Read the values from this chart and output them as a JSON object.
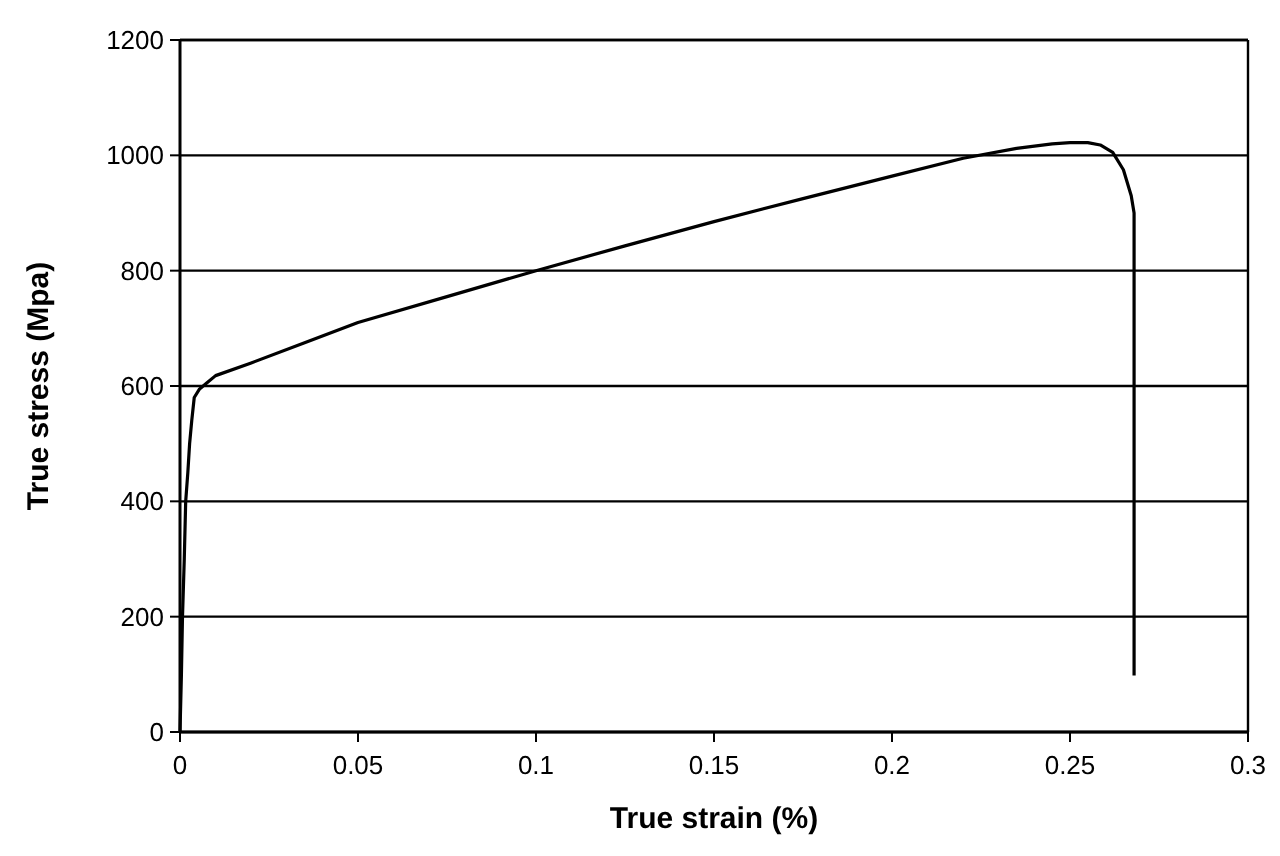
{
  "chart_data": {
    "type": "line",
    "xlabel": "True strain (%)",
    "ylabel": "True stress (Mpa)",
    "x": [
      0,
      0.0004,
      0.0007,
      0.0012,
      0.0016,
      0.0022,
      0.0027,
      0.0033,
      0.004,
      0.0055,
      0.0075,
      0.01,
      0.02,
      0.035,
      0.05,
      0.075,
      0.1,
      0.125,
      0.15,
      0.175,
      0.2,
      0.22,
      0.235,
      0.245,
      0.25,
      0.255,
      0.2585,
      0.262,
      0.265,
      0.2672,
      0.268,
      0.268
    ],
    "series": [
      {
        "color": "#000000",
        "values": [
          0,
          100,
          200,
          300,
          400,
          450,
          500,
          540,
          580,
          595,
          605,
          618,
          640,
          675,
          710,
          755,
          800,
          843,
          885,
          925,
          964,
          995,
          1012,
          1020,
          1022,
          1022,
          1018,
          1005,
          975,
          930,
          900,
          98
        ]
      }
    ],
    "xlim": [
      0,
      0.3
    ],
    "xticks": [
      0,
      0.05,
      0.1,
      0.15,
      0.2,
      0.25,
      0.3
    ],
    "ylim": [
      0,
      1200
    ],
    "yticks": [
      0,
      200,
      400,
      600,
      800,
      1000,
      1200
    ],
    "grid": "y",
    "marker": "none",
    "line_style": "solid"
  }
}
